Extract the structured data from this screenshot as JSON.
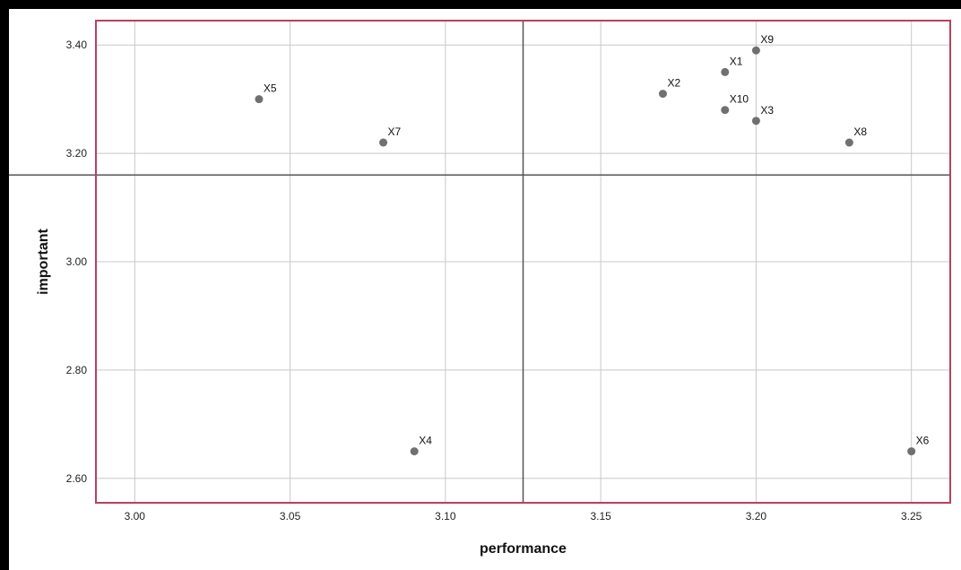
{
  "chart_data": {
    "type": "scatter",
    "title": "",
    "xlabel": "performance",
    "ylabel": "important",
    "xlim": [
      2.9875,
      3.2625
    ],
    "ylim": [
      2.555,
      3.445
    ],
    "x_ticks": [
      3.0,
      3.05,
      3.1,
      3.15,
      3.2,
      3.25
    ],
    "x_tick_labels": [
      "3.00",
      "3.05",
      "3.10",
      "3.15",
      "3.20",
      "3.25"
    ],
    "y_ticks": [
      2.6,
      2.8,
      3.0,
      3.2,
      3.4
    ],
    "y_tick_labels": [
      "2.60",
      "2.80",
      "3.00",
      "3.20",
      "3.40"
    ],
    "grid": true,
    "reference_lines": {
      "x": 3.125,
      "y": 3.16
    },
    "points": [
      {
        "label": "X1",
        "x": 3.19,
        "y": 3.35
      },
      {
        "label": "X2",
        "x": 3.17,
        "y": 3.31
      },
      {
        "label": "X3",
        "x": 3.2,
        "y": 3.26
      },
      {
        "label": "X4",
        "x": 3.09,
        "y": 2.65
      },
      {
        "label": "X5",
        "x": 3.04,
        "y": 3.3
      },
      {
        "label": "X6",
        "x": 3.25,
        "y": 2.65
      },
      {
        "label": "X7",
        "x": 3.08,
        "y": 3.22
      },
      {
        "label": "X8",
        "x": 3.23,
        "y": 3.22
      },
      {
        "label": "X9",
        "x": 3.2,
        "y": 3.39
      },
      {
        "label": "X10",
        "x": 3.19,
        "y": 3.28
      }
    ],
    "colors": {
      "point": "#707070",
      "frame": "#b8405e",
      "grid": "#c8c8c8",
      "reference_line": "#555555"
    }
  }
}
